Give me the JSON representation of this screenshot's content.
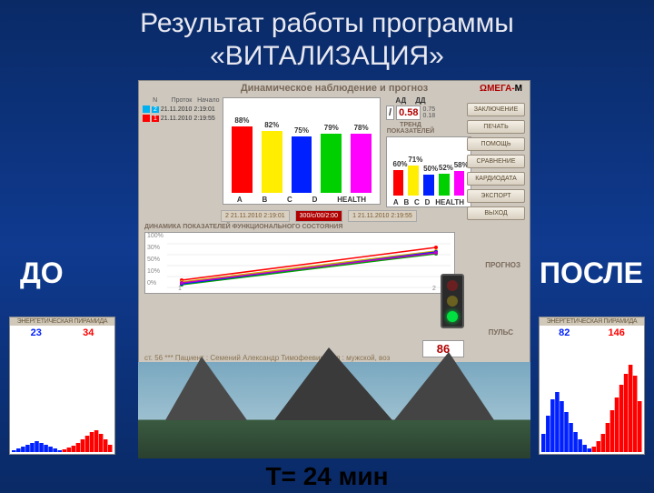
{
  "title_line1": "Результат работы программы",
  "title_line2": "«ВИТАЛИЗАЦИЯ»",
  "label_before": "ДО",
  "label_after": "ПОСЛЕ",
  "timing": "T= 24 мин",
  "app": {
    "title": "Динамическое наблюдение и прогноз",
    "logo_prefix": "Ω",
    "logo_main": "МЕГА-",
    "logo_suffix": "М",
    "date_hdr": [
      "N",
      "Проток",
      "Начало"
    ],
    "dates": [
      {
        "n": "2",
        "d": "21.11.2010",
        "t": "2:19:01",
        "c": "#00b0f0"
      },
      {
        "n": "1",
        "d": "21.11.2010",
        "t": "2:19:55",
        "c": "#ff0000"
      }
    ],
    "chart1": {
      "type": "bar",
      "pcts": [
        "88%",
        "82%",
        "75%",
        "79%",
        "78%"
      ],
      "vals": [
        88,
        82,
        75,
        79,
        78
      ],
      "colors": [
        "#ff0000",
        "#ffee00",
        "#0020ff",
        "#00d000",
        "#ff00ff"
      ],
      "axis": [
        "A",
        "B",
        "C",
        "D",
        "HEALTH"
      ]
    },
    "trend_label": "ТРЕНД ПОКАЗАТЕЛЕЙ",
    "chart2": {
      "type": "bar",
      "pcts": [
        "60%",
        "71%",
        "50%",
        "52%",
        "58%"
      ],
      "vals": [
        60,
        71,
        50,
        52,
        58
      ],
      "colors": [
        "#ff0000",
        "#ffee00",
        "#0020ff",
        "#00d000",
        "#ff00ff"
      ],
      "axis": [
        "A",
        "B",
        "C",
        "D",
        "HEALTH"
      ]
    },
    "ad": {
      "label1": "АД",
      "slash": "/",
      "label2": "ДД",
      "value": "0.58",
      "frac_top": "0.75",
      "frac_bot": "0.18"
    },
    "buttons": [
      "ЗАКЛЮЧЕНИЕ",
      "ПЕЧАТЬ",
      "ПОМОЩЬ",
      "СРАВНЕНИЕ",
      "КАРДИОДАТА",
      "ЭКСПОРТ",
      "ВЫХОД"
    ],
    "records": [
      {
        "txt": "2  21.11.2010 2:19:01",
        "active": false
      },
      {
        "txt": "300/с/00/2:00",
        "active": true
      },
      {
        "txt": "1  21.11.2010 2:19:55",
        "active": false
      }
    ],
    "dyn_label": "ДИНАМИКА ПОКАЗАТЕЛЕЙ ФУНКЦИОНАЛЬНОГО СОСТОЯНИЯ",
    "linechart": {
      "type": "line",
      "ylabels": [
        "100%",
        "30%",
        "50%",
        "10%",
        "0%"
      ],
      "xlabels": [
        "1",
        "2"
      ],
      "series": [
        {
          "c": "#ff0000",
          "y1": 52,
          "y2": 16
        },
        {
          "c": "#d0b000",
          "y1": 54,
          "y2": 20
        },
        {
          "c": "#00a000",
          "y1": 57,
          "y2": 23
        },
        {
          "c": "#0020ff",
          "y1": 56,
          "y2": 21
        },
        {
          "c": "#c000c0",
          "y1": 55,
          "y2": 22
        }
      ]
    },
    "prognosis_label": "ПРОГНОЗ",
    "traffic": {
      "red": "#6a2020",
      "yellow": "#6a6020",
      "green": "#00e040"
    },
    "pulse_label": "ПУЛЬС",
    "pulse_value": "86",
    "patient": "ст.  56  ***  Пациент : Семений Александр Тимофеевич, пол : мужской, воз"
  },
  "pyramid": {
    "title": "ЭНЕРГЕТИЧЕСКАЯ ПИРАМИДА",
    "left": {
      "n1": "23",
      "n2": "34",
      "c1": "#0020ff",
      "c2": "#ff0000",
      "blue": [
        2,
        4,
        6,
        8,
        10,
        12,
        10,
        8,
        6,
        4,
        2
      ],
      "red": [
        3,
        5,
        7,
        10,
        14,
        18,
        22,
        24,
        20,
        14,
        8
      ]
    },
    "right": {
      "n1": "82",
      "n2": "146",
      "c1": "#0020ff",
      "c2": "#ff0000",
      "blue": [
        4,
        8,
        14,
        22,
        32,
        44,
        56,
        66,
        58,
        40,
        20
      ],
      "red": [
        6,
        12,
        20,
        32,
        46,
        60,
        74,
        86,
        96,
        84,
        56
      ]
    }
  }
}
